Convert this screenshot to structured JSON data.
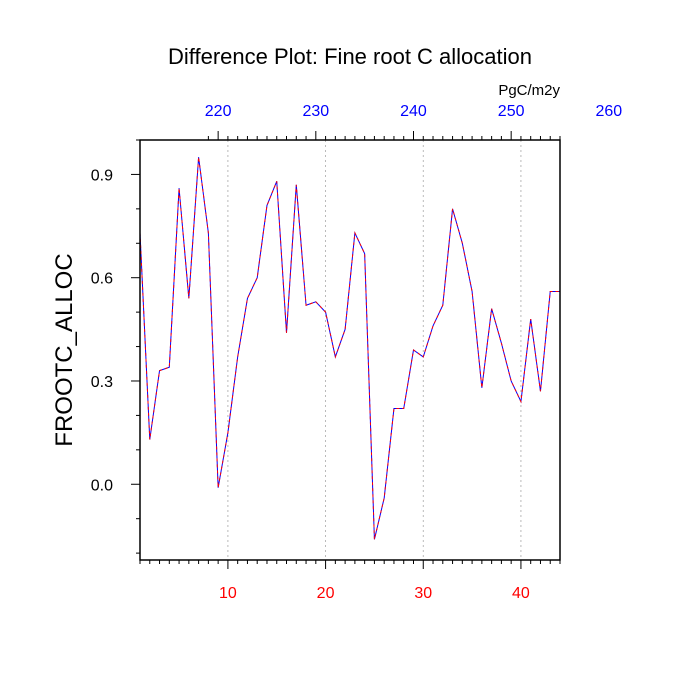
{
  "chart_data": {
    "type": "line",
    "title": "Difference Plot: Fine root C allocation",
    "units": "PgC/m2y",
    "ylabel": "FROOTC_ALLOC",
    "xlabel": "",
    "xlim": [
      1,
      44
    ],
    "ylim": [
      -0.22,
      1.0
    ],
    "x_ticks": [
      10,
      20,
      30,
      40
    ],
    "x_minor_ticks": [
      1,
      2,
      3,
      4,
      5,
      6,
      7,
      8,
      9,
      11,
      12,
      13,
      14,
      15,
      16,
      17,
      18,
      19,
      21,
      22,
      23,
      24,
      25,
      26,
      27,
      28,
      29,
      31,
      32,
      33,
      34,
      35,
      36,
      37,
      38,
      39,
      41,
      42,
      43,
      44
    ],
    "y_ticks": [
      0.0,
      0.3,
      0.6,
      0.9
    ],
    "y_tick_labels": [
      "0.0",
      "0.3",
      "0.6",
      "0.9"
    ],
    "y_minor_ticks": [
      -0.2,
      -0.1,
      0.1,
      0.2,
      0.4,
      0.5,
      0.7,
      0.8,
      1.0
    ],
    "top_axis": {
      "ticks": [
        220,
        230,
        240,
        250,
        260
      ],
      "minor_ticks": [
        219,
        221,
        222,
        223,
        224,
        225,
        226,
        227,
        228,
        229,
        231,
        232,
        233,
        234,
        235,
        236,
        237,
        238,
        239,
        241,
        242,
        243,
        244,
        245,
        246,
        247,
        248,
        249,
        251,
        252,
        253,
        254,
        255,
        256,
        257,
        258,
        259,
        261,
        262
      ],
      "offset": 211
    },
    "gridlines_x": [
      10,
      20,
      30,
      40
    ],
    "grid": "vertical-dashed",
    "x": [
      1,
      2,
      3,
      4,
      5,
      6,
      7,
      8,
      9,
      10,
      11,
      12,
      13,
      14,
      15,
      16,
      17,
      18,
      19,
      20,
      21,
      22,
      23,
      24,
      25,
      26,
      27,
      28,
      29,
      30,
      31,
      32,
      33,
      34,
      35,
      36,
      37,
      38,
      39,
      40,
      41,
      42,
      43,
      44
    ],
    "series": [
      {
        "values": [
          0.73,
          0.13,
          0.33,
          0.34,
          0.86,
          0.54,
          0.95,
          0.73,
          -0.01,
          0.15,
          0.37,
          0.54,
          0.6,
          0.81,
          0.88,
          0.44,
          0.87,
          0.52,
          0.53,
          0.5,
          0.37,
          0.45,
          0.73,
          0.67,
          -0.16,
          -0.04,
          0.22,
          0.22,
          0.39,
          0.37,
          0.46,
          0.52,
          0.8,
          0.7,
          0.56,
          0.28,
          0.51,
          0.41,
          0.3,
          0.24,
          0.48,
          0.27,
          0.56,
          0.56
        ]
      }
    ],
    "colors": {
      "series_solid": "#0000ff",
      "series_dash": "#ff0000",
      "bottom_tick_labels": "#ff0000",
      "top_tick_labels": "#0000ff",
      "axis": "#000000",
      "grid": "#aaaaaa"
    }
  }
}
